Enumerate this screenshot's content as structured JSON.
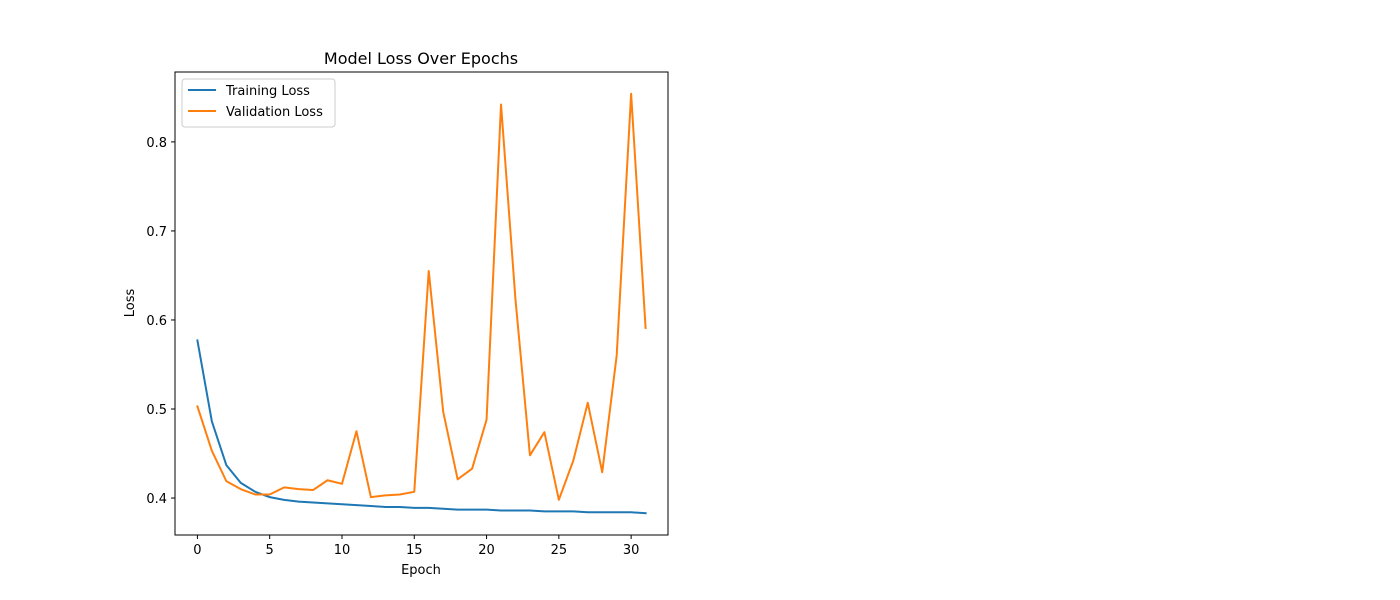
{
  "chart_data": {
    "type": "line",
    "title": "Model Loss Over Epochs",
    "xlabel": "Epoch",
    "ylabel": "Loss",
    "xlim": [
      -1.55,
      32.55
    ],
    "ylim": [
      0.3585,
      0.8785
    ],
    "xticks": [
      0,
      5,
      10,
      15,
      20,
      25,
      30
    ],
    "xtick_labels": [
      "0",
      "5",
      "10",
      "15",
      "20",
      "25",
      "30"
    ],
    "yticks": [
      0.4,
      0.5,
      0.6,
      0.7,
      0.8
    ],
    "ytick_labels": [
      "0.4",
      "0.5",
      "0.6",
      "0.7",
      "0.8"
    ],
    "grid": false,
    "legend_position": "upper-left",
    "x": [
      0,
      1,
      2,
      3,
      4,
      5,
      6,
      7,
      8,
      9,
      10,
      11,
      12,
      13,
      14,
      15,
      16,
      17,
      18,
      19,
      20,
      21,
      22,
      23,
      24,
      25,
      26,
      27,
      28,
      29,
      30,
      31
    ],
    "series": [
      {
        "name": "Training Loss",
        "color": "#1f77b4",
        "values": [
          0.577,
          0.486,
          0.437,
          0.417,
          0.407,
          0.401,
          0.398,
          0.396,
          0.395,
          0.394,
          0.393,
          0.392,
          0.391,
          0.39,
          0.39,
          0.389,
          0.389,
          0.388,
          0.387,
          0.387,
          0.387,
          0.386,
          0.386,
          0.386,
          0.385,
          0.385,
          0.385,
          0.384,
          0.384,
          0.384,
          0.384,
          0.383
        ]
      },
      {
        "name": "Validation Loss",
        "color": "#ff7f0e",
        "values": [
          0.503,
          0.453,
          0.419,
          0.41,
          0.404,
          0.404,
          0.412,
          0.41,
          0.409,
          0.42,
          0.416,
          0.475,
          0.401,
          0.403,
          0.404,
          0.407,
          0.655,
          0.497,
          0.421,
          0.433,
          0.488,
          0.842,
          0.623,
          0.448,
          0.474,
          0.398,
          0.442,
          0.507,
          0.429,
          0.56,
          0.854,
          0.591
        ]
      }
    ]
  }
}
